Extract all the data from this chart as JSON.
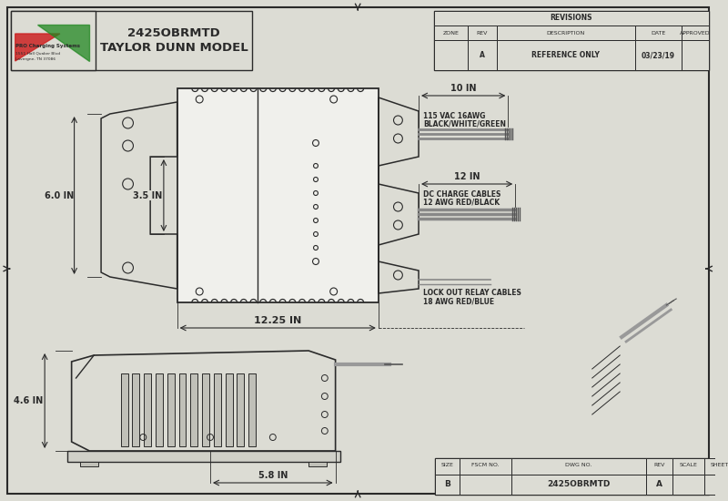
{
  "bg_color": "#dcdcd4",
  "line_color": "#2a2a2a",
  "title_text": "2425OBRMTD\nTAYLOR DUNN MODEL",
  "company_name": "PRO Charging Systems",
  "company_addr1": "1551 Hall Quaker Blvd",
  "company_addr2": "Lavergne, TN 37086",
  "rev_table_title": "REVISIONS",
  "rev_headers": [
    "ZONE",
    "REV",
    "DESCRIPTION",
    "DATE",
    "APPROVED"
  ],
  "rev_row": [
    "",
    "A",
    "REFERENCE ONLY",
    "03/23/19",
    ""
  ],
  "dim_10in": "10 IN",
  "dim_12in": "12 IN",
  "dim_6in": "6.0 IN",
  "dim_35in": "3.5 IN",
  "dim_1225in": "12.25 IN",
  "dim_46in": "4.6 IN",
  "dim_58in": "5.8 IN",
  "cable1_line1": "115 VAC 16AWG",
  "cable1_line2": "BLACK/WHITE/GREEN",
  "cable2_line1": "DC CHARGE CABLES",
  "cable2_line2": "12 AWG RED/BLACK",
  "cable3_line1": "LOCK OUT RELAY CABLES",
  "cable3_line2": "18 AWG RED/BLUE",
  "bottom_fields": [
    "SIZE",
    "FSCM NO.",
    "DWG NO.",
    "REV"
  ],
  "bottom_vals": [
    "B",
    "",
    "2425OBRMTD",
    "A"
  ],
  "scale_label": "SCALE",
  "sheet_label": "SHEET"
}
